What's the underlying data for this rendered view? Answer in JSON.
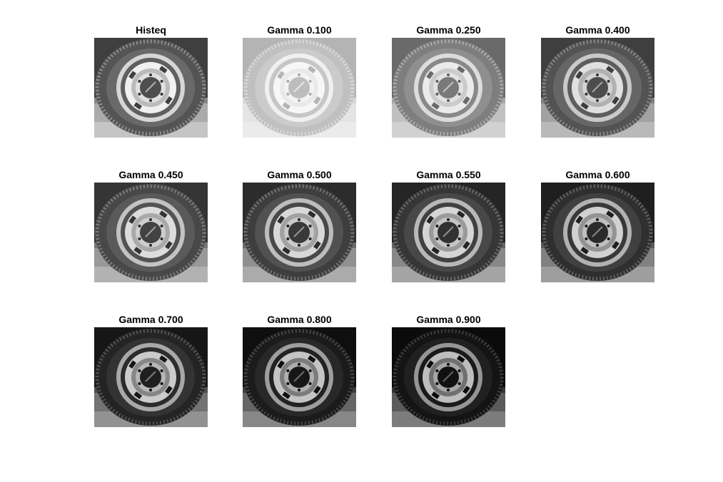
{
  "figure": {
    "background": "#ffffff",
    "panels": [
      {
        "title": "Histeq",
        "gamma": null,
        "histeq": true
      },
      {
        "title": "Gamma 0.100",
        "gamma": 0.1
      },
      {
        "title": "Gamma 0.250",
        "gamma": 0.25
      },
      {
        "title": "Gamma 0.400",
        "gamma": 0.4
      },
      {
        "title": "Gamma 0.450",
        "gamma": 0.45
      },
      {
        "title": "Gamma 0.500",
        "gamma": 0.5
      },
      {
        "title": "Gamma 0.550",
        "gamma": 0.55
      },
      {
        "title": "Gamma 0.600",
        "gamma": 0.6
      },
      {
        "title": "Gamma 0.700",
        "gamma": 0.7
      },
      {
        "title": "Gamma 0.800",
        "gamma": 0.8
      },
      {
        "title": "Gamma 0.900",
        "gamma": 0.9
      }
    ]
  }
}
